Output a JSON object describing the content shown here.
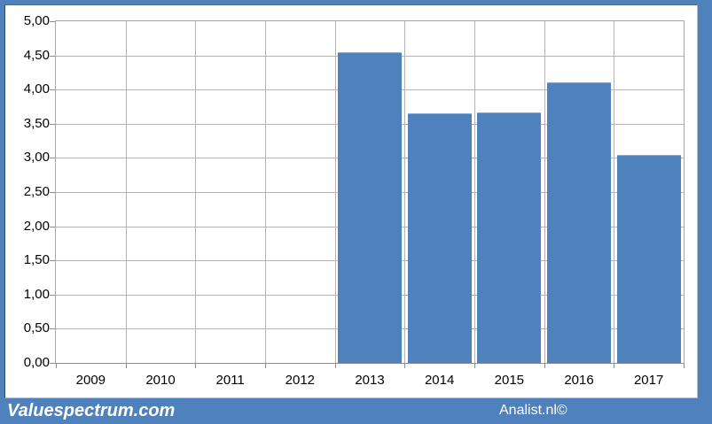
{
  "footer": {
    "left_brand": "Valuespectrum.com",
    "right_brand": "Analist.nl©"
  },
  "chart_data": {
    "type": "bar",
    "title": "",
    "xlabel": "",
    "ylabel": "",
    "categories": [
      "2009",
      "2010",
      "2011",
      "2012",
      "2013",
      "2014",
      "2015",
      "2016",
      "2017"
    ],
    "values": [
      null,
      null,
      null,
      null,
      4.55,
      3.65,
      3.66,
      4.11,
      3.04
    ],
    "ylim": [
      0,
      5
    ],
    "ytick_step": 0.5,
    "ytick_labels": [
      "0,00",
      "0,50",
      "1,00",
      "1,50",
      "2,00",
      "2,50",
      "3,00",
      "3,50",
      "4,00",
      "4,50",
      "5,00"
    ],
    "grid": true,
    "legend_position": "none",
    "number_format": "comma-decimal",
    "bar_color": "#4f81bd",
    "bar_edge_color": "#86abd6"
  },
  "colors": {
    "frame_blue": "#4f81bd",
    "footer_blue": "#4f81bd",
    "plot_border": "#a6a6a6",
    "gridline": "#b3b3b3",
    "tick": "#8c8c8c",
    "axis_text": "#000000",
    "brand_text": "#ffffff"
  }
}
